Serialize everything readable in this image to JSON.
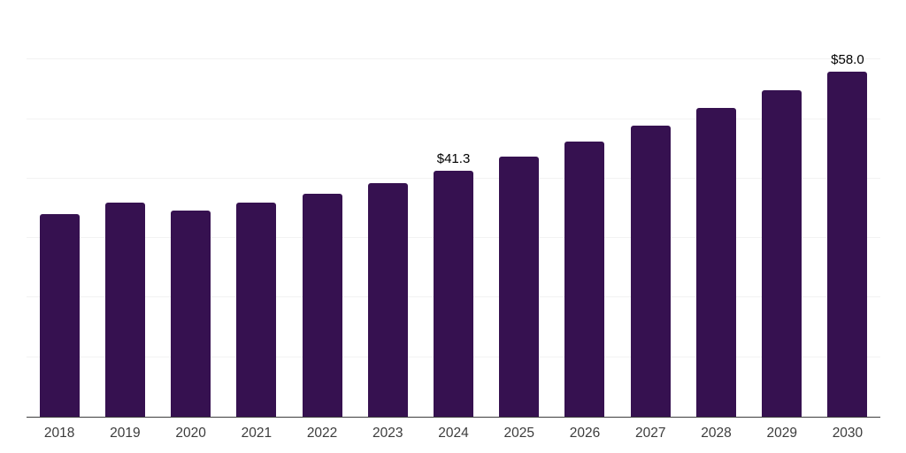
{
  "chart_data": {
    "type": "bar",
    "categories": [
      "2018",
      "2019",
      "2020",
      "2021",
      "2022",
      "2023",
      "2024",
      "2025",
      "2026",
      "2027",
      "2028",
      "2029",
      "2030"
    ],
    "values": [
      34.1,
      35.9,
      34.7,
      36.0,
      37.5,
      39.3,
      41.3,
      43.7,
      46.2,
      48.9,
      51.8,
      54.8,
      58.0
    ],
    "annotations": [
      {
        "category": "2024",
        "text": "$41.3"
      },
      {
        "category": "2030",
        "text": "$58.0"
      }
    ],
    "ylim": [
      0,
      70
    ],
    "grid_step": 10,
    "grid": "horizontal",
    "legend": "none",
    "bar_color": "#361150",
    "gridline_color": "#f2f2f2",
    "axis_color": "#3d3d3d",
    "annotation_color": "#000000",
    "tick_label_color": "#3c3c3c"
  }
}
